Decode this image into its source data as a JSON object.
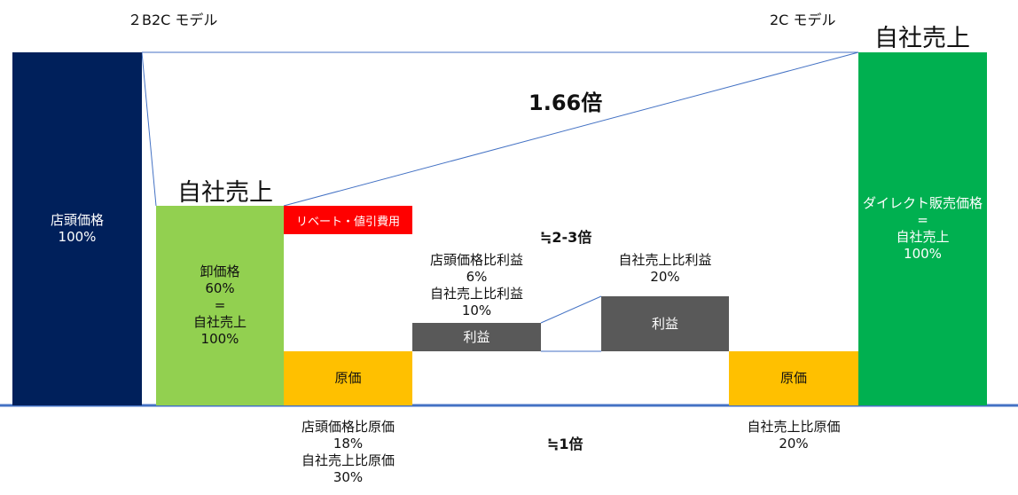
{
  "headers": {
    "b2c_model": "２B2C モデル",
    "d2c_model": "2C モデル"
  },
  "ratios": {
    "sales_ratio": "1.66倍",
    "profit_ratio": "≒2-3倍",
    "cost_ratio": "≒1倍"
  },
  "b2c": {
    "store_price": {
      "title": "店頭価格",
      "pct": "100%"
    },
    "own_sales_title": "自社売上",
    "wholesale": {
      "line1": "卸価格",
      "line2": "60%",
      "line3": "=",
      "line4": "自社売上",
      "line5": "100%"
    },
    "rebate": "リベート・値引費用",
    "cost": "原価",
    "profit": "利益",
    "profit_note": {
      "line1": "店頭価格比利益",
      "line2": "6%",
      "line3": "自社売上比利益",
      "line4": "10%"
    },
    "cost_note": {
      "line1": "店頭価格比原価",
      "line2": "18%",
      "line3": "自社売上比原価",
      "line4": "30%"
    }
  },
  "d2c": {
    "own_sales_title": "自社売上",
    "direct": {
      "line1": "ダイレクト販売価格",
      "line2": "=",
      "line3": "自社売上",
      "line4": "100%"
    },
    "cost": "原価",
    "profit": "利益",
    "profit_note": {
      "line1": "自社売上比利益",
      "line2": "20%"
    },
    "cost_note": {
      "line1": "自社売上比原価",
      "line2": "20%"
    }
  },
  "colors": {
    "navy": "#00205b",
    "light_green": "#92d050",
    "green": "#00b050",
    "red": "#ff0000",
    "gold": "#ffc000",
    "dark_gray": "#595959",
    "line_blue": "#4472c4"
  }
}
